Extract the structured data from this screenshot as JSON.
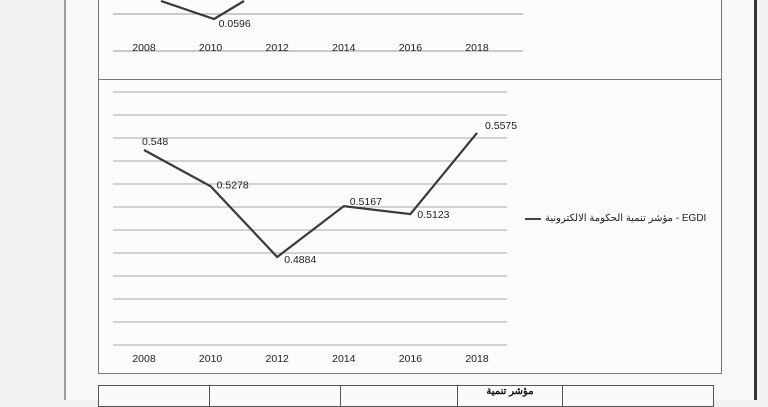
{
  "chart_data": [
    {
      "type": "line",
      "x": [
        2008,
        2010,
        2012,
        2014,
        2016,
        2018
      ],
      "visible_labels": [
        {
          "year": 2010,
          "value": "0.0596"
        }
      ],
      "x_ticks": [
        "2008",
        "2010",
        "2012",
        "2014",
        "2016",
        "2018"
      ],
      "grid": true,
      "line_color": "#3a3a3a"
    },
    {
      "type": "line",
      "x": [
        2008,
        2010,
        2012,
        2014,
        2016,
        2018
      ],
      "x_ticks": [
        "2008",
        "2010",
        "2012",
        "2014",
        "2016",
        "2018"
      ],
      "series": [
        {
          "name": "مؤشر تنمية الحكومة الالكترونية - EGDI",
          "values": [
            0.548,
            0.5278,
            0.4884,
            0.5167,
            0.5123,
            0.5575
          ],
          "labels": [
            "0.548",
            "0.5278",
            "0.4884",
            "0.5167",
            "0.5123",
            "0.5575"
          ]
        }
      ],
      "legend_placement": "right",
      "grid": true,
      "line_color": "#3a3a3a"
    }
  ],
  "table": {
    "header_cell": "مؤشر تنمية"
  }
}
